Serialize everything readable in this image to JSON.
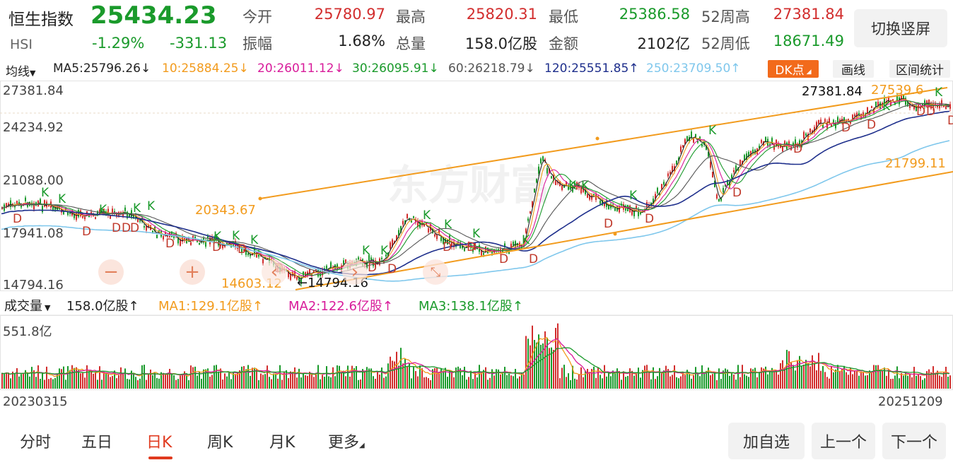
{
  "header": {
    "name": "恒生指数",
    "price": "25434.23",
    "code": "HSI",
    "change_pct": "-1.29%",
    "change": "-331.13",
    "switch_label": "切换竖屏"
  },
  "stats": [
    {
      "label": "今开",
      "value": "25780.97",
      "color": "#d22d2d"
    },
    {
      "label": "最高",
      "value": "25820.31",
      "color": "#d22d2d"
    },
    {
      "label": "最低",
      "value": "25386.58",
      "color": "#1a9a2b"
    },
    {
      "label": "52周高",
      "value": "27381.84",
      "color": "#d22d2d"
    },
    {
      "label": "振幅",
      "value": "1.68%",
      "color": "#222222"
    },
    {
      "label": "总量",
      "value": "158.0亿股",
      "color": "#222222"
    },
    {
      "label": "金额",
      "value": "2102亿",
      "color": "#222222"
    },
    {
      "label": "52周低",
      "value": "18671.49",
      "color": "#1a9a2b"
    }
  ],
  "ma_bar": {
    "selector": "均线",
    "ma5": "MA5:25796.26↓",
    "ma10": "10:25884.25↓",
    "ma20": "20:26011.12↓",
    "ma30": "30:26095.91↓",
    "ma60": "60:26218.79↓",
    "ma120": "120:25551.85↑",
    "ma250": "250:23709.50↑",
    "dk_label": "DK点",
    "draw_label": "画线",
    "interval_label": "区间统计"
  },
  "colors": {
    "up": "#d22d2d",
    "down": "#1a9a2b",
    "ma5": "#222222",
    "ma10": "#f29b1d",
    "ma20": "#d81b9a",
    "ma30": "#1a9a2b",
    "ma60": "#555555",
    "ma120": "#1e2f8c",
    "ma250": "#7fc7ec",
    "accent": "#f26a1b"
  },
  "price_axis": [
    "27381.84",
    "24234.92",
    "21088.00",
    "17941.08",
    "14794.16"
  ],
  "chart_annotations": {
    "high": "27381.84",
    "low": "14794.16",
    "channel_labels": [
      "20343.67",
      "14603.12",
      "21799.11"
    ],
    "channel_partial": "27539.6"
  },
  "volume": {
    "selector": "成交量",
    "total": "158.0亿股↑",
    "ma1": "MA1:129.1亿股↑",
    "ma2": "MA2:122.6亿股↑",
    "ma3": "MA3:138.1亿股↑",
    "max_label": "551.8亿"
  },
  "date_axis": {
    "start": "20230315",
    "end": "20251209"
  },
  "watermark": "东方财富",
  "tabs": [
    "分时",
    "五日",
    "日K",
    "周K",
    "月K",
    "更多"
  ],
  "active_tab": 2,
  "actions": [
    "加自选",
    "上一个",
    "下一个"
  ]
}
